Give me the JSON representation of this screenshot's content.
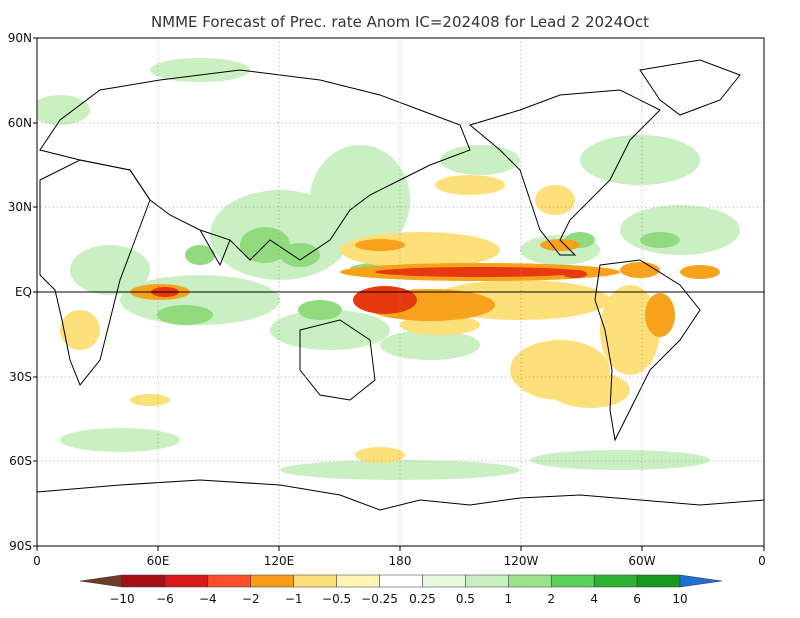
{
  "map": {
    "title": "NMME Forecast of Prec. rate Anom IC=202408 for Lead 2 2024Oct",
    "lat_ticks": [
      "90N",
      "60N",
      "30N",
      "EQ",
      "30S",
      "60S",
      "90S"
    ],
    "lon_ticks": [
      "0",
      "60E",
      "120E",
      "180",
      "120W",
      "60W",
      "0"
    ],
    "projection": "equirectangular, 0-360 longitude",
    "grid": true,
    "equator_line": true
  },
  "colorbar": {
    "labels": [
      "−10",
      "−6",
      "−4",
      "−2",
      "−1",
      "−0.5",
      "−0.25",
      "0.25",
      "0.5",
      "1",
      "2",
      "4",
      "6",
      "10"
    ],
    "colors": [
      "#6e3a2a",
      "#a50f15",
      "#d7191c",
      "#fc4e2a",
      "#f89a1c",
      "#fde07a",
      "#fef4b4",
      "#ffffff",
      "#e6f8e0",
      "#c7efbf",
      "#9be28d",
      "#5cd05a",
      "#2eb331",
      "#16971d",
      "#1f6fd6"
    ]
  },
  "colors": {
    "strong_dry": "#e8380f",
    "moderate_dry": "#f7a21a",
    "weak_dry": "#fde07a",
    "weak_wet": "#c7efbf",
    "moderate_wet": "#7dd76b",
    "coastline": "#000000"
  }
}
